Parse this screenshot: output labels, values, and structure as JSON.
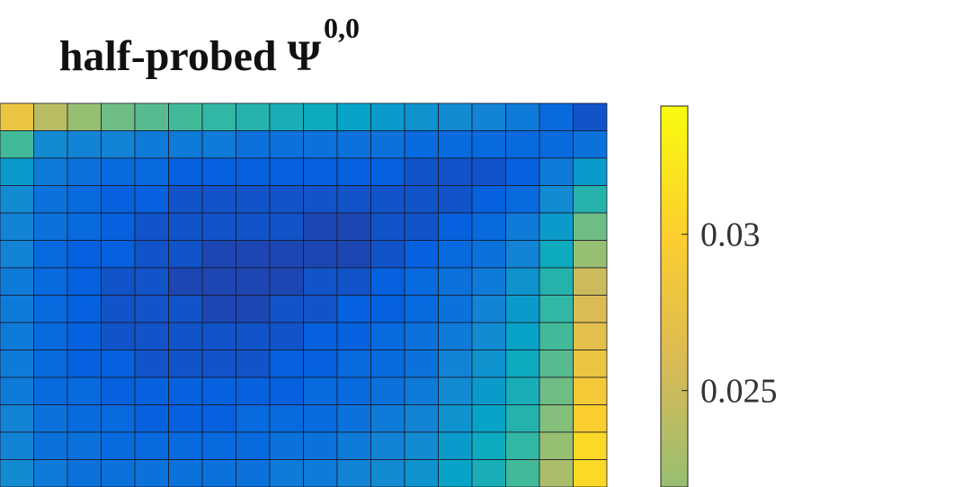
{
  "chart_data": {
    "type": "heatmap",
    "title": "half-probed Ψ",
    "title_superscript": "0,0",
    "colormap": [
      "#352a87",
      "#0363e1",
      "#1485d4",
      "#06a7c6",
      "#38b99e",
      "#92bf73",
      "#d9ba56",
      "#fcce2e",
      "#f9fb0e"
    ],
    "clim": [
      0.001,
      0.0341
    ],
    "colorbar_ticks": [
      0.025,
      0.03
    ],
    "z": [
      [
        0.028,
        0.024,
        0.022,
        0.02,
        0.019,
        0.018,
        0.017,
        0.016,
        0.015,
        0.014,
        0.013,
        0.012,
        0.011,
        0.01,
        0.009,
        0.008,
        0.006,
        0.004
      ],
      [
        0.018,
        0.01,
        0.009,
        0.009,
        0.008,
        0.008,
        0.008,
        0.007,
        0.007,
        0.007,
        0.007,
        0.007,
        0.006,
        0.006,
        0.006,
        0.006,
        0.006,
        0.007
      ],
      [
        0.012,
        0.008,
        0.007,
        0.006,
        0.006,
        0.005,
        0.005,
        0.005,
        0.005,
        0.005,
        0.005,
        0.005,
        0.004,
        0.004,
        0.004,
        0.005,
        0.008,
        0.012
      ],
      [
        0.01,
        0.007,
        0.006,
        0.005,
        0.005,
        0.004,
        0.004,
        0.004,
        0.004,
        0.004,
        0.004,
        0.004,
        0.004,
        0.004,
        0.005,
        0.006,
        0.01,
        0.016
      ],
      [
        0.009,
        0.007,
        0.006,
        0.005,
        0.004,
        0.004,
        0.004,
        0.004,
        0.004,
        0.003,
        0.003,
        0.004,
        0.004,
        0.005,
        0.006,
        0.008,
        0.012,
        0.02
      ],
      [
        0.009,
        0.006,
        0.005,
        0.005,
        0.004,
        0.004,
        0.003,
        0.003,
        0.003,
        0.003,
        0.003,
        0.004,
        0.005,
        0.006,
        0.007,
        0.009,
        0.014,
        0.022
      ],
      [
        0.008,
        0.006,
        0.005,
        0.004,
        0.004,
        0.003,
        0.003,
        0.003,
        0.003,
        0.004,
        0.004,
        0.005,
        0.006,
        0.007,
        0.008,
        0.011,
        0.016,
        0.025
      ],
      [
        0.008,
        0.006,
        0.005,
        0.004,
        0.004,
        0.004,
        0.003,
        0.003,
        0.004,
        0.004,
        0.005,
        0.005,
        0.006,
        0.007,
        0.009,
        0.012,
        0.017,
        0.026
      ],
      [
        0.008,
        0.006,
        0.005,
        0.004,
        0.004,
        0.004,
        0.004,
        0.004,
        0.004,
        0.005,
        0.005,
        0.006,
        0.007,
        0.008,
        0.01,
        0.013,
        0.018,
        0.027
      ],
      [
        0.008,
        0.006,
        0.005,
        0.005,
        0.004,
        0.004,
        0.004,
        0.004,
        0.005,
        0.005,
        0.006,
        0.006,
        0.007,
        0.009,
        0.011,
        0.014,
        0.019,
        0.028
      ],
      [
        0.008,
        0.006,
        0.006,
        0.005,
        0.005,
        0.005,
        0.005,
        0.005,
        0.005,
        0.006,
        0.006,
        0.007,
        0.008,
        0.01,
        0.012,
        0.015,
        0.02,
        0.029
      ],
      [
        0.009,
        0.007,
        0.006,
        0.006,
        0.005,
        0.005,
        0.005,
        0.006,
        0.006,
        0.006,
        0.007,
        0.008,
        0.009,
        0.011,
        0.013,
        0.016,
        0.021,
        0.03
      ],
      [
        0.009,
        0.007,
        0.007,
        0.006,
        0.006,
        0.006,
        0.006,
        0.006,
        0.007,
        0.007,
        0.008,
        0.009,
        0.01,
        0.012,
        0.014,
        0.017,
        0.022,
        0.031
      ],
      [
        0.01,
        0.008,
        0.007,
        0.007,
        0.007,
        0.007,
        0.007,
        0.007,
        0.008,
        0.008,
        0.009,
        0.01,
        0.011,
        0.013,
        0.015,
        0.018,
        0.023,
        0.031
      ]
    ]
  }
}
